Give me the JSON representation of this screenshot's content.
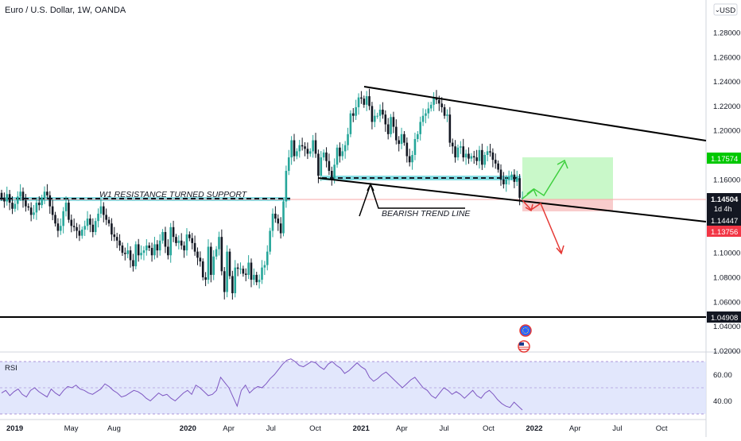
{
  "header": {
    "symbol_title": "Euro / U.S. Dollar, 1W, OANDA",
    "currency_button": "USD",
    "currency_chevron": "⌄"
  },
  "annotations": {
    "support_label": "W1 RESISTANCE TURNED SUPPORT",
    "trendline_label": "BEARISH TREND LINE"
  },
  "price_labels": {
    "target": "1.17574",
    "current": "1.14504",
    "countdown": "1d 4h",
    "support": "1.14447",
    "stop": "1.13756",
    "low_line": "1.04908"
  },
  "rsi": {
    "label": "RSI",
    "ticks": [
      "60.00",
      "40.00"
    ],
    "values": [
      46,
      48,
      44,
      47,
      49,
      45,
      43,
      48,
      50,
      47,
      45,
      43,
      49,
      46,
      44,
      48,
      51,
      50,
      52,
      49,
      48,
      46,
      45,
      47,
      49,
      53,
      51,
      48,
      46,
      43,
      44,
      46,
      48,
      47,
      45,
      42,
      40,
      43,
      46,
      44,
      45,
      42,
      40,
      43,
      46,
      48,
      45,
      52,
      50,
      47,
      44,
      45,
      48,
      58,
      54,
      50,
      43,
      36,
      48,
      52,
      46,
      49,
      51,
      50,
      53,
      57,
      60,
      64,
      68,
      71,
      72,
      70,
      67,
      66,
      68,
      70,
      69,
      66,
      64,
      68,
      70,
      67,
      65,
      61,
      63,
      66,
      69,
      66,
      64,
      58,
      55,
      57,
      60,
      62,
      59,
      56,
      53,
      50,
      53,
      56,
      58,
      54,
      50,
      48,
      44,
      42,
      46,
      50,
      48,
      45,
      47,
      45,
      42,
      45,
      48,
      44,
      42,
      46,
      48,
      45,
      41,
      38,
      36,
      35,
      39,
      36,
      33
    ]
  },
  "colors": {
    "up": "#26a69a",
    "down": "#131722",
    "channel": "#000000",
    "support_zone": "#79d9e0",
    "target_zone": "#b7f5b7",
    "stop_zone": "#f7c3c3",
    "green_arrow": "#3ecf3e",
    "red_arrow": "#e53935",
    "rsi_line": "#7e57c2",
    "rsi_band": "#dde3fb",
    "target_label_bg": "#00c800",
    "current_label_bg": "#131722",
    "stop_label_bg": "#f23645"
  },
  "chart_data": {
    "type": "candlestick",
    "title": "Euro / U.S. Dollar, 1W, OANDA",
    "y_axis": {
      "ticks": [
        "1.28000",
        "1.26000",
        "1.24000",
        "1.22000",
        "1.20000",
        "1.16000",
        "1.10000",
        "1.08000",
        "1.06000",
        "1.04000",
        "1.02000"
      ],
      "range": [
        1.015,
        1.31
      ]
    },
    "x_axis": {
      "ticks": [
        {
          "label": "2019",
          "date": "2019-01",
          "bold": true
        },
        {
          "label": "May",
          "date": "2019-05",
          "bold": false
        },
        {
          "label": "Aug",
          "date": "2019-08",
          "bold": false
        },
        {
          "label": "2020",
          "date": "2020-01",
          "bold": true
        },
        {
          "label": "Apr",
          "date": "2020-04",
          "bold": false
        },
        {
          "label": "Jul",
          "date": "2020-07",
          "bold": false
        },
        {
          "label": "Oct",
          "date": "2020-10",
          "bold": false
        },
        {
          "label": "2021",
          "date": "2021-01",
          "bold": true
        },
        {
          "label": "Apr",
          "date": "2021-04",
          "bold": false
        },
        {
          "label": "Jul",
          "date": "2021-07",
          "bold": false
        },
        {
          "label": "Oct",
          "date": "2021-10",
          "bold": false
        },
        {
          "label": "2022",
          "date": "2022-01",
          "bold": true
        },
        {
          "label": "Apr",
          "date": "2022-04",
          "bold": false
        },
        {
          "label": "Jul",
          "date": "2022-07",
          "bold": false
        },
        {
          "label": "Oct",
          "date": "2022-10",
          "bold": false
        }
      ]
    },
    "close": [
      1.145,
      1.142,
      1.148,
      1.141,
      1.136,
      1.14,
      1.146,
      1.15,
      1.143,
      1.138,
      1.137,
      1.131,
      1.133,
      1.141,
      1.139,
      1.145,
      1.15,
      1.147,
      1.138,
      1.131,
      1.124,
      1.118,
      1.122,
      1.134,
      1.141,
      1.127,
      1.122,
      1.121,
      1.118,
      1.114,
      1.119,
      1.122,
      1.128,
      1.123,
      1.117,
      1.126,
      1.132,
      1.138,
      1.131,
      1.127,
      1.124,
      1.115,
      1.113,
      1.11,
      1.106,
      1.1,
      1.099,
      1.102,
      1.094,
      1.089,
      1.107,
      1.098,
      1.1,
      1.102,
      1.106,
      1.104,
      1.098,
      1.107,
      1.102,
      1.11,
      1.117,
      1.105,
      1.098,
      1.121,
      1.113,
      1.108,
      1.11,
      1.106,
      1.102,
      1.115,
      1.112,
      1.108,
      1.101,
      1.096,
      1.093,
      1.08,
      1.078,
      1.105,
      1.082,
      1.097,
      1.103,
      1.113,
      1.085,
      1.068,
      1.101,
      1.081,
      1.067,
      1.088,
      1.087,
      1.087,
      1.083,
      1.082,
      1.092,
      1.078,
      1.082,
      1.076,
      1.078,
      1.088,
      1.09,
      1.101,
      1.118,
      1.132,
      1.128,
      1.124,
      1.116,
      1.142,
      1.167,
      1.178,
      1.192,
      1.179,
      1.183,
      1.188,
      1.187,
      1.185,
      1.181,
      1.183,
      1.192,
      1.181,
      1.163,
      1.178,
      1.182,
      1.175,
      1.167,
      1.161,
      1.172,
      1.186,
      1.179,
      1.183,
      1.188,
      1.197,
      1.214,
      1.212,
      1.219,
      1.227,
      1.226,
      1.221,
      1.228,
      1.22,
      1.207,
      1.212,
      1.212,
      1.217,
      1.213,
      1.205,
      1.197,
      1.211,
      1.203,
      1.192,
      1.189,
      1.197,
      1.19,
      1.179,
      1.174,
      1.18,
      1.193,
      1.197,
      1.207,
      1.212,
      1.214,
      1.218,
      1.221,
      1.227,
      1.225,
      1.222,
      1.219,
      1.212,
      1.213,
      1.19,
      1.187,
      1.178,
      1.186,
      1.187,
      1.178,
      1.181,
      1.177,
      1.179,
      1.178,
      1.175,
      1.184,
      1.172,
      1.18,
      1.183,
      1.182,
      1.176,
      1.173,
      1.168,
      1.16,
      1.156,
      1.16,
      1.162,
      1.164,
      1.158,
      1.161,
      1.145,
      1.145
    ]
  }
}
